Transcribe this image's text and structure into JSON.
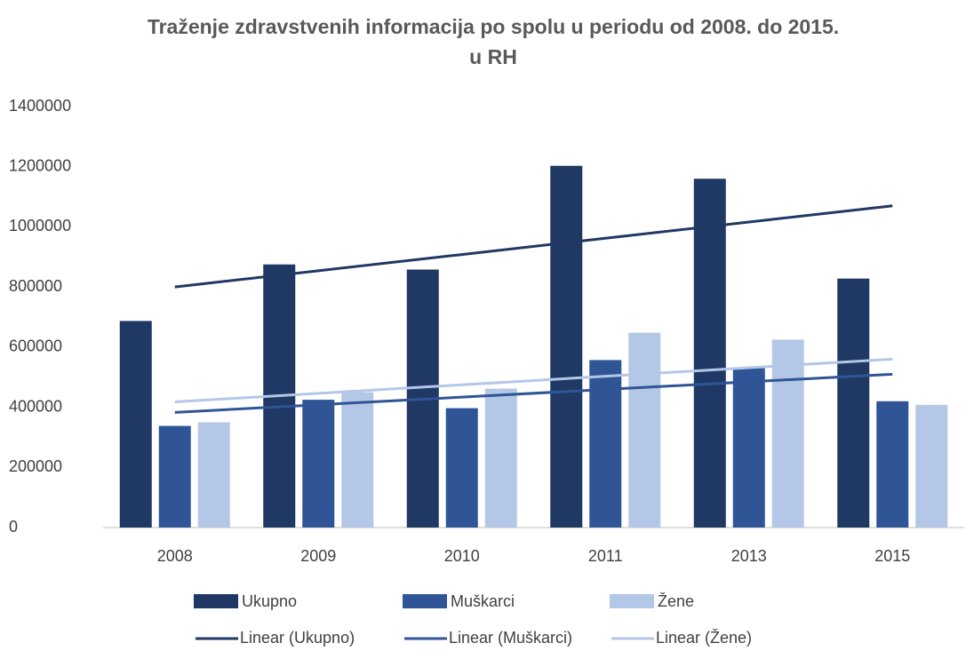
{
  "chart_data": {
    "type": "bar",
    "title": "Traženje zdravstvenih informacija po spolu u periodu od 2008. do 2015. u RH",
    "categories": [
      "2008",
      "2009",
      "2010",
      "2011",
      "2013",
      "2015"
    ],
    "series": [
      {
        "name": "Ukupno",
        "color": "#1f3864",
        "values": [
          687000,
          875000,
          858000,
          1203000,
          1160000,
          828000
        ]
      },
      {
        "name": "Muškarci",
        "color": "#2f5597",
        "values": [
          338000,
          425000,
          397000,
          557000,
          530000,
          420000
        ]
      },
      {
        "name": "Žene",
        "color": "#b4c7e7",
        "values": [
          350000,
          450000,
          462000,
          648000,
          625000,
          408000
        ]
      }
    ],
    "trendlines": [
      {
        "name": "Linear (Ukupno)",
        "color": "#1f3864",
        "values": [
          800000,
          854000,
          908000,
          962000,
          1016000,
          1070000
        ]
      },
      {
        "name": "Linear (Muškarci)",
        "color": "#2f5597",
        "values": [
          383000,
          408400,
          433800,
          459200,
          484600,
          510000
        ]
      },
      {
        "name": "Linear (Žene)",
        "color": "#b4c7e7",
        "values": [
          418000,
          446400,
          474800,
          503200,
          531600,
          560000
        ]
      }
    ],
    "ylim": [
      0,
      1400000
    ],
    "yticks": [
      0,
      200000,
      400000,
      600000,
      800000,
      1000000,
      1200000,
      1400000
    ],
    "grid": false
  }
}
